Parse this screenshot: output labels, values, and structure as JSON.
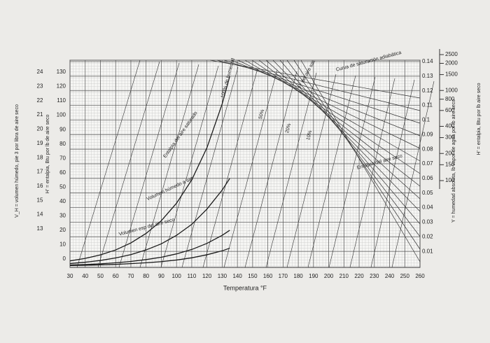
{
  "chart_data": {
    "type": "line",
    "x_label": "Temperatura °F",
    "y_label": "Y = humedad absoluta, lb vapor de agua por lb aire seco",
    "x": [
      30,
      40,
      50,
      60,
      70,
      80,
      90,
      100,
      110,
      120,
      130,
      135
    ],
    "series": [
      {
        "name": "100% de humedad",
        "color": "#1a1a1a",
        "values": [
          0.0035,
          0.0052,
          0.0076,
          0.011,
          0.0158,
          0.0223,
          0.031,
          0.043,
          0.059,
          0.081,
          0.111,
          0.13
        ]
      },
      {
        "name": "50%",
        "color": "#1a1a1a",
        "values": [
          0.0017,
          0.0026,
          0.0038,
          0.0055,
          0.0078,
          0.011,
          0.0152,
          0.021,
          0.0285,
          0.039,
          0.052,
          0.06
        ]
      },
      {
        "name": "20%",
        "color": "#1a1a1a",
        "values": [
          0.0007,
          0.001,
          0.0015,
          0.0022,
          0.0031,
          0.0044,
          0.006,
          0.0083,
          0.0113,
          0.0155,
          0.021,
          0.0245
        ]
      },
      {
        "name": "10%",
        "color": "#1a1a1a",
        "values": [
          0.0003,
          0.0005,
          0.0008,
          0.0011,
          0.0016,
          0.0022,
          0.003,
          0.0041,
          0.0056,
          0.0077,
          0.0104,
          0.0122
        ]
      }
    ],
    "xlim": [
      30,
      260
    ],
    "xticks": [
      30,
      40,
      50,
      60,
      70,
      80,
      90,
      100,
      110,
      120,
      130,
      140,
      150,
      160,
      170,
      180,
      190,
      200,
      210,
      220,
      230,
      240,
      250,
      260
    ],
    "ylim": [
      0,
      0.14
    ],
    "yticks": [
      0.01,
      0.02,
      0.03,
      0.04,
      0.05,
      0.06,
      0.07,
      0.08,
      0.09,
      0.1,
      0.11,
      0.12,
      0.13,
      0.14
    ],
    "grid": true,
    "vh_axis": {
      "label": "V_H = volumen húmedo, pie 3 por libra de aire seco",
      "lim": [
        13,
        24
      ],
      "ticks": [
        13,
        14,
        15,
        16,
        17,
        18,
        19,
        20,
        21,
        22,
        23,
        24
      ]
    },
    "h_axis": {
      "label": "H' = entalpia, Btu por lb de aire seco",
      "lim": [
        0,
        130
      ],
      "ticks": [
        0,
        10,
        20,
        30,
        40,
        50,
        60,
        70,
        80,
        90,
        100,
        110,
        120,
        130
      ]
    },
    "hsat_axis": {
      "label": "H' = entalpia, Btu por lb aire seco",
      "log": true,
      "lim": [
        100,
        2500
      ],
      "ticks": [
        100,
        150,
        200,
        300,
        400,
        600,
        800,
        1000,
        1500,
        2000,
        2500
      ]
    },
    "annotations": [
      "Curva de saturación adiabática",
      "H' del aire sat.",
      "Entalpia del aire saturado",
      "Volumen húmedo a sat",
      "Volumen esp del aire seco",
      "Entalpia del aire seco"
    ]
  }
}
